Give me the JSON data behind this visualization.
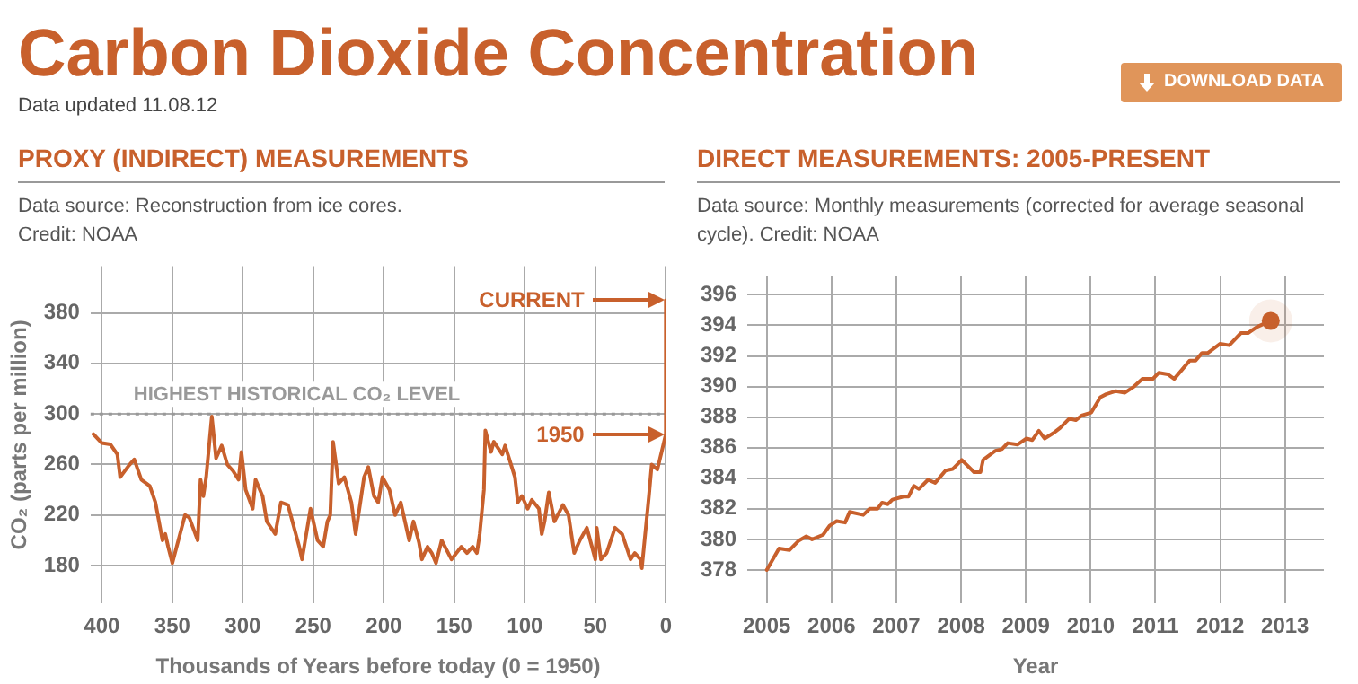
{
  "chart_data": [
    {
      "type": "other",
      "title": "Carbon Dioxide Concentration",
      "subtitle": "Data updated 11.08.12",
      "annotations": [
        "DOWNLOAD DATA"
      ]
    },
    {
      "type": "line",
      "title": "PROXY (INDIRECT) MEASUREMENTS",
      "subtitle": "Data source: Reconstruction from ice cores.\nCredit: NOAA",
      "xlabel": "Thousands of Years before today (0 = 1950)",
      "ylabel": "CO₂ (parts per million)",
      "xlim": [
        408,
        0
      ],
      "ylim": [
        150,
        417
      ],
      "xticks": [
        400,
        350,
        300,
        250,
        200,
        150,
        100,
        50,
        0
      ],
      "yticks": [
        180,
        220,
        260,
        300,
        340,
        380
      ],
      "grid": true,
      "marker": "none",
      "line_style": "solid",
      "series": [
        {
          "color": "#c8602c",
          "x": [
            406,
            400,
            394,
            389,
            387,
            381,
            377,
            372,
            366,
            362,
            357,
            355,
            353,
            350,
            341,
            338,
            332,
            330,
            328,
            326,
            322,
            319,
            315,
            311,
            307,
            303,
            301,
            298,
            293,
            291,
            286,
            283,
            277,
            273,
            268,
            260,
            258,
            252,
            247,
            243,
            240,
            238,
            236,
            232,
            228,
            223,
            220,
            214,
            211,
            207,
            204,
            201,
            196,
            192,
            188,
            182,
            179,
            175,
            173,
            169,
            166,
            163,
            159,
            152,
            145,
            141,
            137,
            134,
            132,
            129,
            128,
            124,
            122,
            116,
            114,
            107,
            105,
            102,
            98,
            95,
            90,
            88,
            86,
            83,
            79,
            73,
            69,
            65,
            61,
            56,
            50,
            49,
            46,
            42,
            36,
            31,
            25,
            22,
            18,
            17,
            12,
            10,
            6,
            3,
            0,
            0
          ],
          "values": [
            284,
            277,
            276,
            268,
            250,
            259,
            264,
            248,
            243,
            230,
            200,
            205,
            195,
            182,
            220,
            218,
            200,
            248,
            235,
            250,
            298,
            265,
            275,
            260,
            255,
            248,
            270,
            240,
            225,
            248,
            235,
            215,
            205,
            230,
            228,
            195,
            185,
            225,
            200,
            195,
            215,
            220,
            278,
            245,
            250,
            230,
            205,
            250,
            258,
            235,
            230,
            250,
            240,
            220,
            230,
            200,
            215,
            198,
            185,
            195,
            190,
            182,
            200,
            185,
            195,
            190,
            195,
            190,
            205,
            240,
            287,
            270,
            278,
            268,
            275,
            250,
            230,
            235,
            225,
            232,
            225,
            205,
            215,
            238,
            215,
            228,
            220,
            190,
            200,
            210,
            185,
            210,
            185,
            190,
            210,
            205,
            185,
            190,
            185,
            178,
            235,
            260,
            256,
            270,
            284,
            390
          ]
        }
      ],
      "ref_lines": [
        {
          "axis": "y",
          "value": 300,
          "label": "HIGHEST HISTORICAL CO₂ LEVEL",
          "color": "#999999",
          "line_style": "dotted"
        }
      ],
      "annotations": [
        "CURRENT",
        "1950"
      ]
    },
    {
      "type": "line",
      "title": "DIRECT MEASUREMENTS: 2005-PRESENT",
      "subtitle": "Data source: Monthly measurements (corrected for average seasonal cycle). Credit: NOAA",
      "xlabel": "Year",
      "xlim": [
        2004.7,
        2013.6
      ],
      "ylim": [
        375.8,
        397.2
      ],
      "xticks": [
        2005,
        2006,
        2007,
        2008,
        2009,
        2010,
        2011,
        2012,
        2013
      ],
      "yticks": [
        378,
        380,
        382,
        384,
        386,
        388,
        390,
        392,
        394,
        396
      ],
      "grid": true,
      "marker": "none",
      "line_style": "solid",
      "series": [
        {
          "color": "#c8602c",
          "x": [
            2005.0,
            2005.19,
            2005.35,
            2005.49,
            2005.61,
            2005.7,
            2005.87,
            2005.97,
            2006.08,
            2006.21,
            2006.28,
            2006.49,
            2006.59,
            2006.71,
            2006.78,
            2006.87,
            2006.94,
            2007.11,
            2007.19,
            2007.27,
            2007.35,
            2007.49,
            2007.6,
            2007.76,
            2007.87,
            2008.01,
            2008.2,
            2008.3,
            2008.34,
            2008.53,
            2008.63,
            2008.72,
            2008.87,
            2009.01,
            2009.1,
            2009.2,
            2009.29,
            2009.44,
            2009.53,
            2009.67,
            2009.77,
            2009.86,
            2010.01,
            2010.15,
            2010.24,
            2010.39,
            2010.53,
            2010.67,
            2010.8,
            2010.96,
            2011.05,
            2011.19,
            2011.29,
            2011.53,
            2011.62,
            2011.72,
            2011.81,
            2012.0,
            2012.14,
            2012.32,
            2012.43,
            2012.57,
            2012.78
          ],
          "values": [
            378.0,
            379.4,
            379.3,
            379.9,
            380.2,
            380.0,
            380.3,
            380.9,
            381.2,
            381.1,
            381.8,
            381.6,
            382.0,
            382.0,
            382.4,
            382.3,
            382.6,
            382.8,
            382.8,
            383.5,
            383.3,
            383.9,
            383.7,
            384.5,
            384.6,
            385.2,
            384.4,
            384.4,
            385.2,
            385.8,
            385.9,
            386.3,
            386.2,
            386.6,
            386.5,
            387.1,
            386.6,
            387.0,
            387.3,
            387.9,
            387.8,
            388.1,
            388.3,
            389.3,
            389.5,
            389.7,
            389.6,
            390.0,
            390.5,
            390.5,
            390.9,
            390.8,
            390.5,
            391.7,
            391.7,
            392.2,
            392.2,
            392.8,
            392.7,
            393.5,
            393.5,
            393.9,
            394.3
          ]
        },
        {
          "type": "scatter",
          "color": "#c8602c",
          "marker": "circle",
          "x": [
            2012.78
          ],
          "values": [
            394.3
          ]
        }
      ]
    }
  ]
}
